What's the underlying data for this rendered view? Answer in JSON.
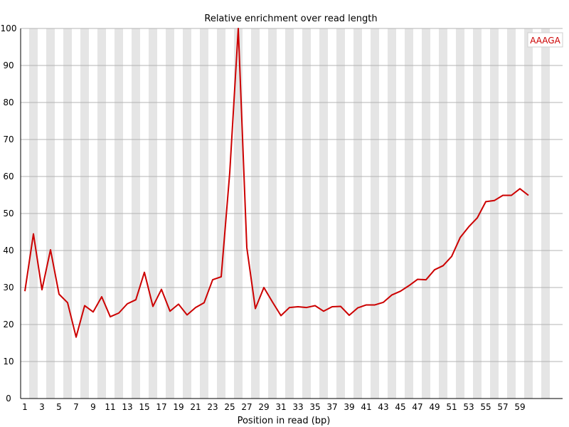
{
  "chart_data": {
    "type": "line",
    "title": "Relative enrichment over read length",
    "xlabel": "Position in read (bp)",
    "ylabel": "",
    "ylim": [
      0,
      100
    ],
    "y_ticks": [
      0,
      10,
      20,
      30,
      40,
      50,
      60,
      70,
      80,
      90,
      100
    ],
    "x": [
      1,
      2,
      3,
      4,
      5,
      6,
      7,
      8,
      9,
      10,
      11,
      12,
      13,
      14,
      15,
      16,
      17,
      18,
      19,
      20,
      21,
      22,
      23,
      24,
      25,
      26,
      27,
      28,
      29,
      30,
      31,
      32,
      33,
      34,
      35,
      36,
      37,
      38,
      39,
      40,
      41,
      42,
      43,
      44,
      45,
      46,
      47,
      48,
      49,
      50,
      51,
      52,
      53,
      54,
      55,
      56,
      57,
      58,
      59,
      60
    ],
    "x_tick_labels": [
      "1",
      "3",
      "5",
      "7",
      "9",
      "11",
      "13",
      "15",
      "17",
      "19",
      "21",
      "23",
      "25",
      "27",
      "29",
      "31",
      "33",
      "35",
      "37",
      "39",
      "41",
      "43",
      "45",
      "47",
      "49",
      "51",
      "53",
      "55",
      "57",
      "59"
    ],
    "series": [
      {
        "name": "AAAGA",
        "color": "#cc0000",
        "values": [
          29.0,
          44.5,
          29.4,
          40.2,
          28.2,
          25.9,
          16.6,
          25.1,
          23.4,
          27.5,
          22.1,
          23.1,
          25.6,
          26.7,
          34.1,
          24.9,
          29.5,
          23.6,
          25.5,
          22.6,
          24.6,
          25.9,
          32.1,
          32.9,
          61.0,
          100.0,
          40.8,
          24.3,
          30.0,
          26.1,
          22.4,
          24.6,
          24.8,
          24.6,
          25.1,
          23.6,
          24.8,
          24.9,
          22.5,
          24.5,
          25.3,
          25.3,
          26.0,
          28.0,
          29.0,
          30.5,
          32.2,
          32.1,
          34.8,
          35.9,
          38.4,
          43.5,
          46.4,
          48.8,
          53.2,
          53.5,
          54.9,
          54.9,
          56.7,
          54.9
        ]
      }
    ],
    "grid": true,
    "background_stripes": "alternating grey/white per position",
    "legend_position": "top-right"
  }
}
